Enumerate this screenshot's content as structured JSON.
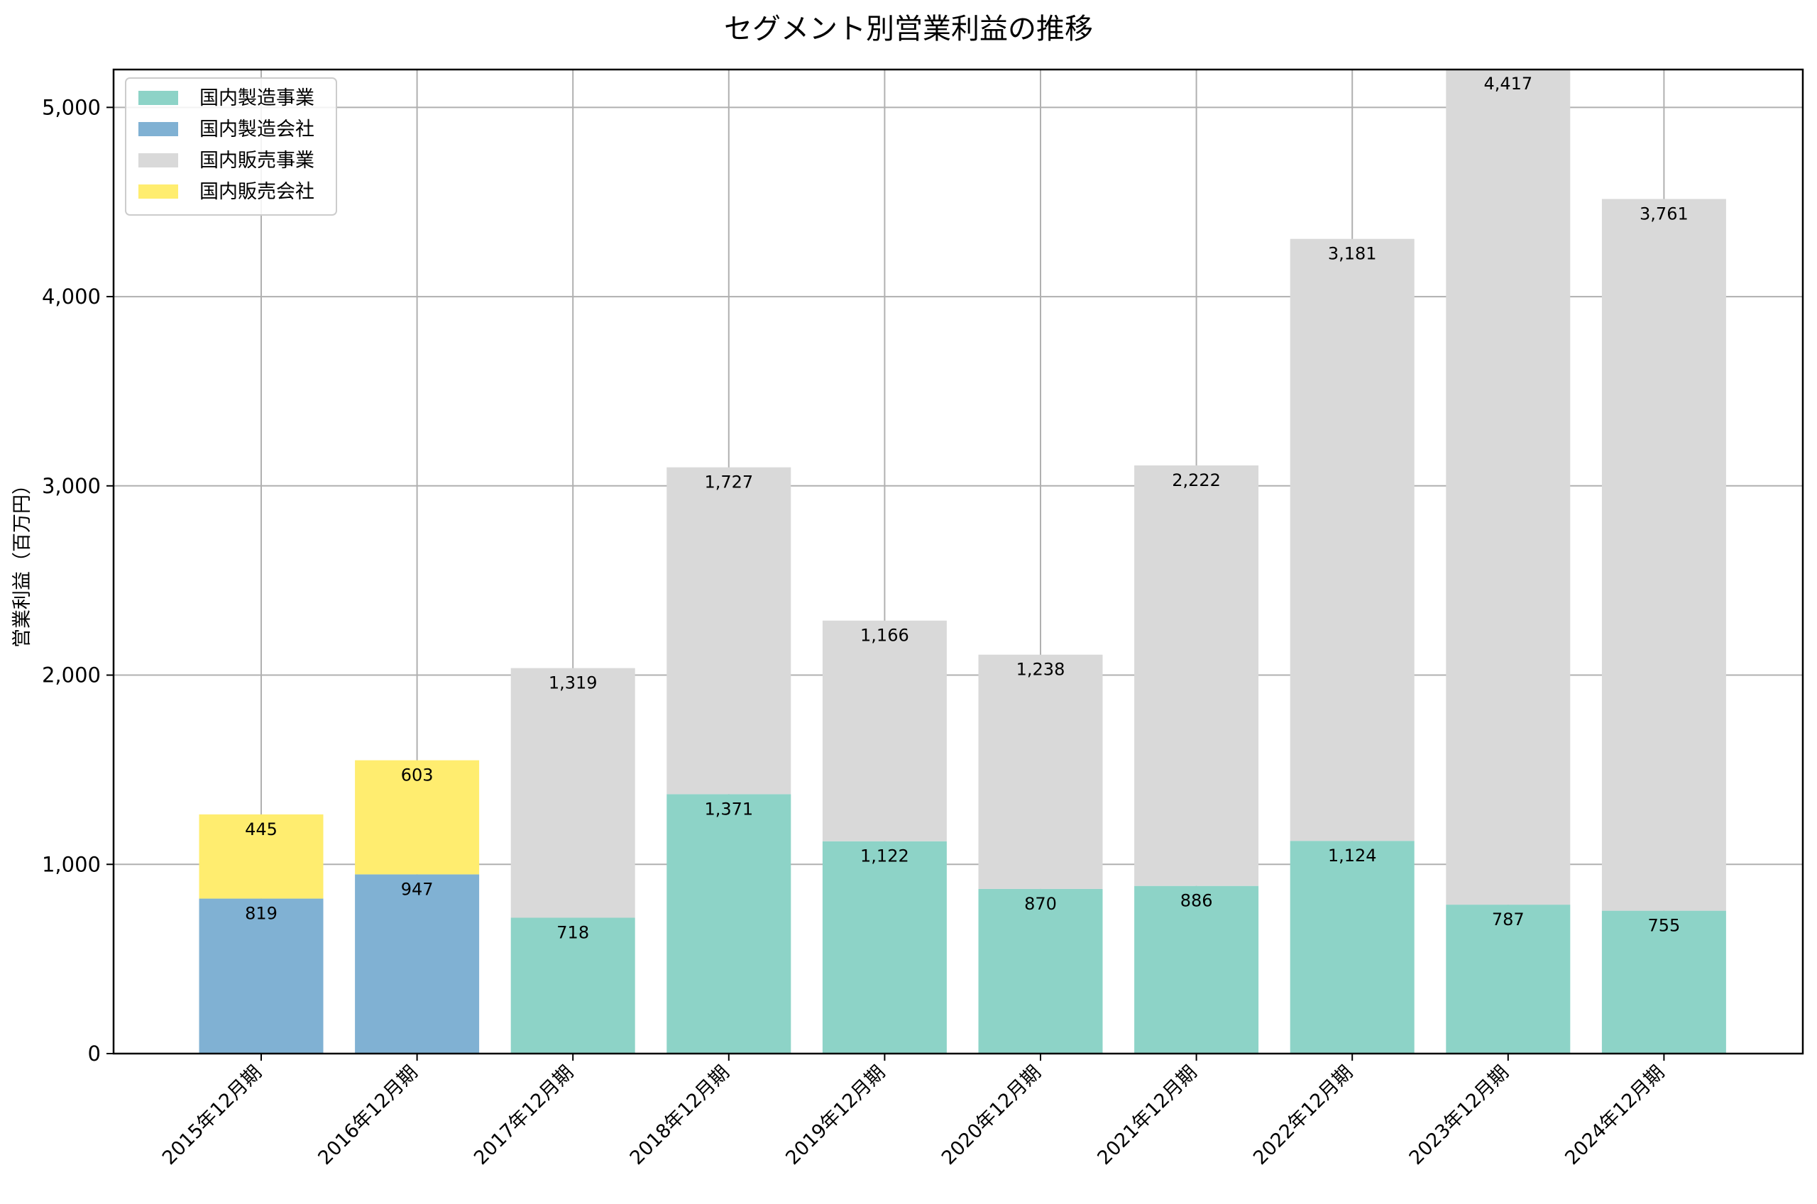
{
  "chart_data": {
    "type": "bar",
    "stacked": true,
    "title": "セグメント別営業利益の推移",
    "xlabel": "",
    "ylabel": "営業利益（百万円）",
    "ylim": [
      0,
      5200
    ],
    "yticks": [
      0,
      1000,
      2000,
      3000,
      4000,
      5000
    ],
    "ytick_labels": [
      "0",
      "1,000",
      "2,000",
      "3,000",
      "4,000",
      "5,000"
    ],
    "grid": true,
    "legend_position": "top-left",
    "categories": [
      "2015年12月期",
      "2016年12月期",
      "2017年12月期",
      "2018年12月期",
      "2019年12月期",
      "2020年12月期",
      "2021年12月期",
      "2022年12月期",
      "2023年12月期",
      "2024年12月期"
    ],
    "series": [
      {
        "name": "国内製造事業",
        "color": "#8dd3c7",
        "values": [
          null,
          null,
          718,
          1371,
          1122,
          870,
          886,
          1124,
          787,
          755
        ],
        "labels": [
          null,
          null,
          "718",
          "1,371",
          "1,122",
          "870",
          "886",
          "1,124",
          "787",
          "755"
        ]
      },
      {
        "name": "国内製造会社",
        "color": "#80b1d3",
        "values": [
          819,
          947,
          null,
          null,
          null,
          null,
          null,
          null,
          null,
          null
        ],
        "labels": [
          "819",
          "947",
          null,
          null,
          null,
          null,
          null,
          null,
          null,
          null
        ]
      },
      {
        "name": "国内販売事業",
        "color": "#d9d9d9",
        "values": [
          null,
          null,
          1319,
          1727,
          1166,
          1238,
          2222,
          3181,
          4417,
          3761
        ],
        "labels": [
          null,
          null,
          "1,319",
          "1,727",
          "1,166",
          "1,238",
          "2,222",
          "3,181",
          "4,417",
          "3,761"
        ]
      },
      {
        "name": "国内販売会社",
        "color": "#ffed6f",
        "values": [
          445,
          603,
          null,
          null,
          null,
          null,
          null,
          null,
          null,
          null
        ],
        "labels": [
          "445",
          "603",
          null,
          null,
          null,
          null,
          null,
          null,
          null,
          null
        ]
      }
    ]
  }
}
